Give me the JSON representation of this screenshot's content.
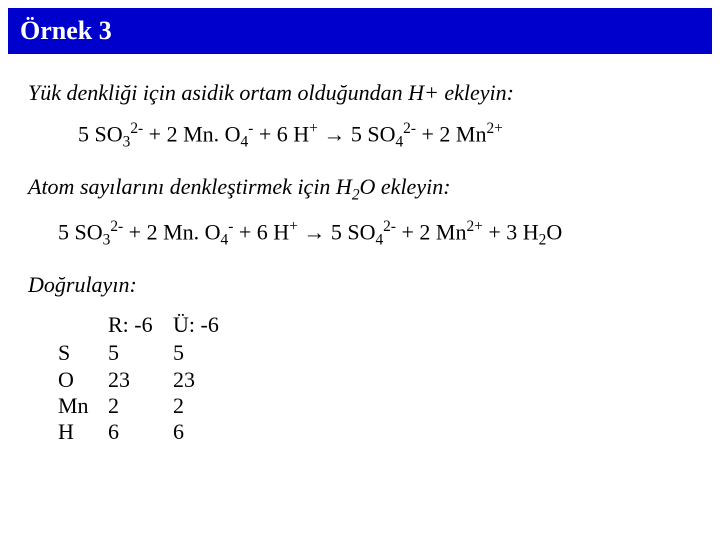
{
  "title": "Örnek 3",
  "instruction1": "Yük denkliği için asidik ortam olduğundan H+ ekleyin:",
  "instruction2": "Doğrulayın:",
  "equation1_parts": {
    "p1": "5 SO",
    "p2": " + 2 Mn. O",
    "p3": " + 6 H",
    "arrow": " → ",
    "p4": "5 SO",
    "p5": " + 2 Mn"
  },
  "instruction_mid": "Atom sayılarını denkleştirmek için H",
  "instruction_mid2": "O ekleyin:",
  "equation2_tail": " + 3 H",
  "equation2_tailO": "O",
  "subs": {
    "three": "3",
    "four": "4",
    "two": "2"
  },
  "sups": {
    "two_minus": "2-",
    "minus": "-",
    "plus": "+",
    "two_plus": "2+"
  },
  "verify": {
    "header_r": "R: -6",
    "header_u": "Ü: -6",
    "rows": [
      {
        "el": "S",
        "r": "5",
        "u": "5"
      },
      {
        "el": "O",
        "r": "23",
        "u": "23"
      },
      {
        "el": "Mn",
        "r": "2",
        "u": "2"
      },
      {
        "el": "H",
        "r": "6",
        "u": "6"
      }
    ]
  }
}
